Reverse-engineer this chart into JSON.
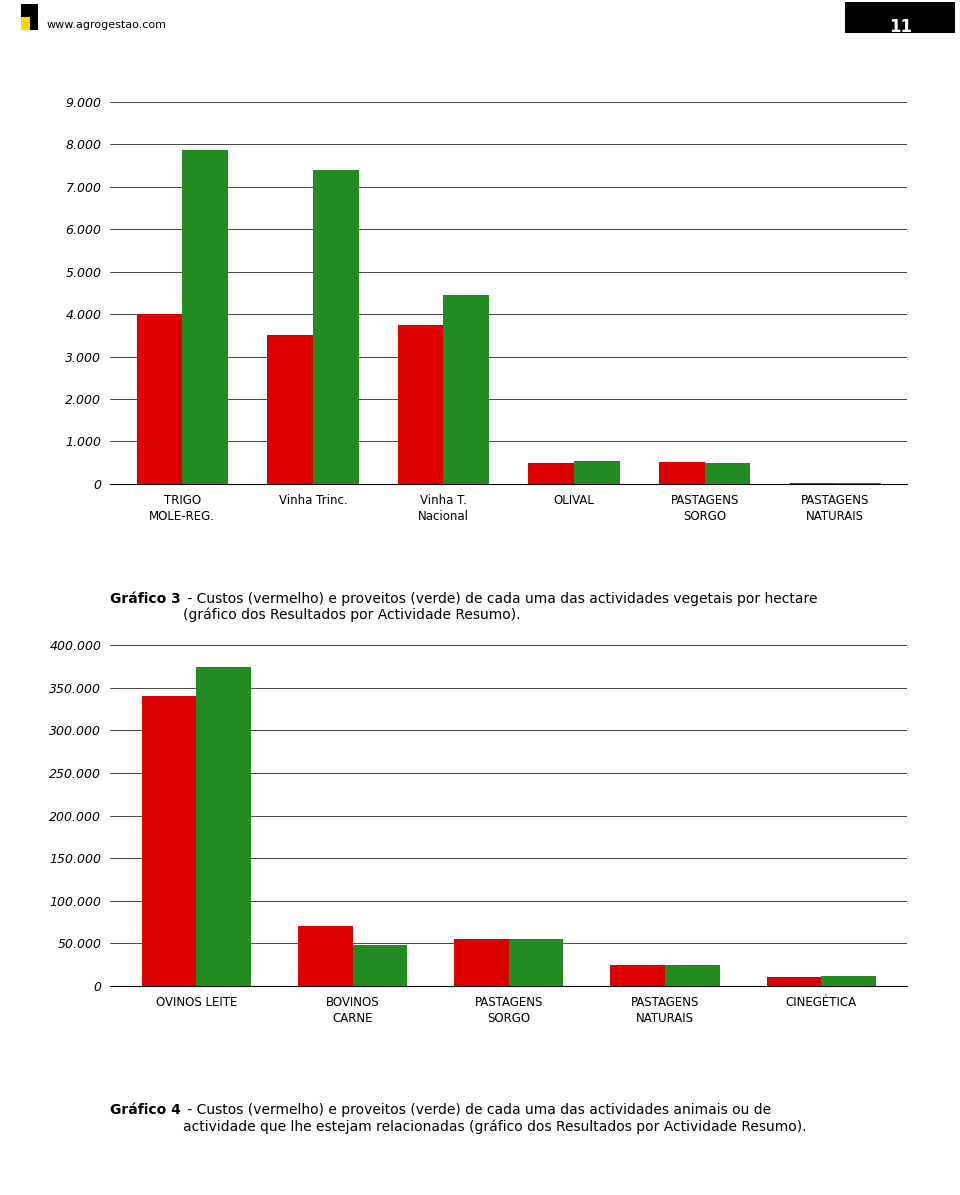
{
  "chart1": {
    "cat_labels": [
      "TRIGO\nMOLE-REG.",
      "Vinha Trinc.",
      "Vinha T.\nNacional",
      "OLIVAL",
      "PASTAGENS\nSORGO",
      "PASTAGENS\nNATURAIS"
    ],
    "red_values": [
      4000,
      3500,
      3750,
      500,
      520,
      30
    ],
    "green_values": [
      7850,
      7400,
      4450,
      530,
      500,
      30
    ],
    "ylim": [
      0,
      9000
    ],
    "yticks": [
      0,
      1000,
      2000,
      3000,
      4000,
      5000,
      6000,
      7000,
      8000,
      9000
    ],
    "caption_bold": "Gráfico 3",
    "caption_rest": " - Custos (vermelho) e proveitos (verde) de cada uma das actividades vegetais por hectare\n(gráfico dos Resultados por Actividade Resumo)."
  },
  "chart2": {
    "cat_labels": [
      "OVINOS LEITE",
      "BOVINOS\nCARNE",
      "PASTAGENS\nSORGO",
      "PASTAGENS\nNATURAIS",
      "CINEGÉTICA"
    ],
    "red_values": [
      340000,
      70000,
      55000,
      25000,
      10000
    ],
    "green_values": [
      375000,
      48000,
      55000,
      25000,
      12000
    ],
    "ylim": [
      0,
      400000
    ],
    "yticks": [
      0,
      50000,
      100000,
      150000,
      200000,
      250000,
      300000,
      350000,
      400000
    ],
    "caption_bold": "Gráfico 4",
    "caption_rest": " - Custos (vermelho) e proveitos (verde) de cada uma das actividades animais ou de\nactividade que lhe estejam relacionadas (gráfico dos Resultados por Actividade Resumo)."
  },
  "red_color": "#dd0000",
  "green_color": "#228B22",
  "bar_width": 0.35,
  "background_color": "#ffffff",
  "header_text": "www.agrogestao.com",
  "page_num": "11",
  "grid_color": "#000000",
  "axis_color": "#000000",
  "tick_fontsize": 9,
  "label_fontsize": 8.5,
  "caption_fontsize": 10
}
